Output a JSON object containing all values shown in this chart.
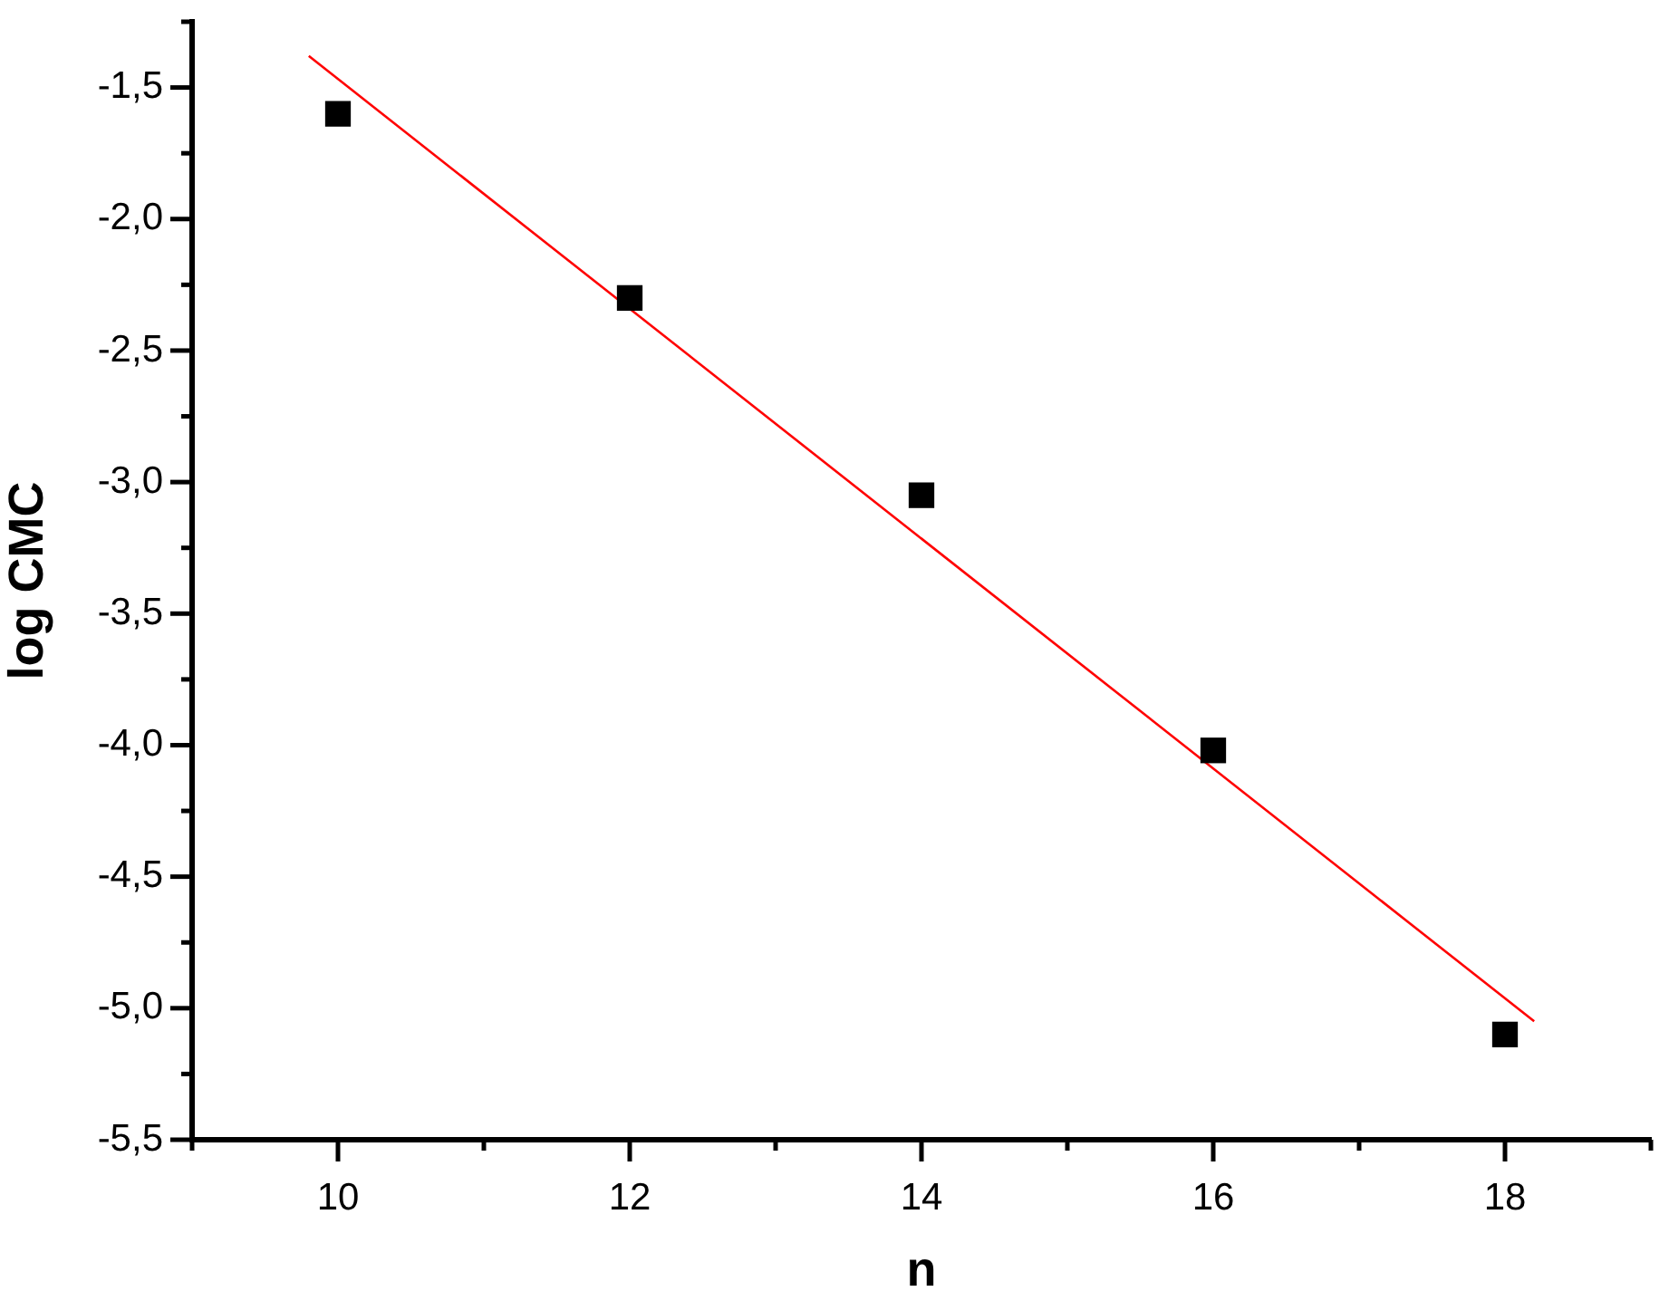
{
  "chart_data": {
    "type": "scatter",
    "xlabel": "n",
    "ylabel": "log CMC",
    "series": [
      {
        "color": "#000000",
        "marker": "square",
        "x": [
          10,
          12,
          14,
          16,
          18
        ],
        "values": [
          -1.6,
          -2.3,
          -3.05,
          -4.02,
          -5.1
        ]
      },
      {
        "type": "line",
        "color": "#ff0000",
        "marker": "none",
        "x": [
          9.8,
          18.2
        ],
        "values": [
          -1.38,
          -5.05
        ]
      }
    ],
    "xlim": [
      9,
      19
    ],
    "ylim": [
      -5.5,
      -1.25
    ],
    "xticks": [
      {
        "value": 9,
        "label": null
      },
      10,
      {
        "value": 11,
        "label": null
      },
      12,
      {
        "value": 13,
        "label": null
      },
      14,
      {
        "value": 15,
        "label": null
      },
      16,
      {
        "value": 17,
        "label": null
      },
      18,
      {
        "value": 19,
        "label": null
      }
    ],
    "yticks": [
      {
        "value": -5.5,
        "label": "-5,5"
      },
      {
        "value": -5.25,
        "label": null
      },
      {
        "value": -5,
        "label": "-5,0"
      },
      {
        "value": -4.75,
        "label": null
      },
      {
        "value": -4.5,
        "label": "-4,5"
      },
      {
        "value": -4.25,
        "label": null
      },
      {
        "value": -4,
        "label": "-4,0"
      },
      {
        "value": -3.75,
        "label": null
      },
      {
        "value": -3.5,
        "label": "-3,5"
      },
      {
        "value": -3.25,
        "label": null
      },
      {
        "value": -3,
        "label": "-3,0"
      },
      {
        "value": -2.75,
        "label": null
      },
      {
        "value": -2.5,
        "label": "-2,5"
      },
      {
        "value": -2.25,
        "label": null
      },
      {
        "value": -2,
        "label": "-2,0"
      },
      {
        "value": -1.75,
        "label": null
      },
      {
        "value": -1.5,
        "label": "-1,5"
      },
      {
        "value": -1.25,
        "label": null
      }
    ]
  }
}
